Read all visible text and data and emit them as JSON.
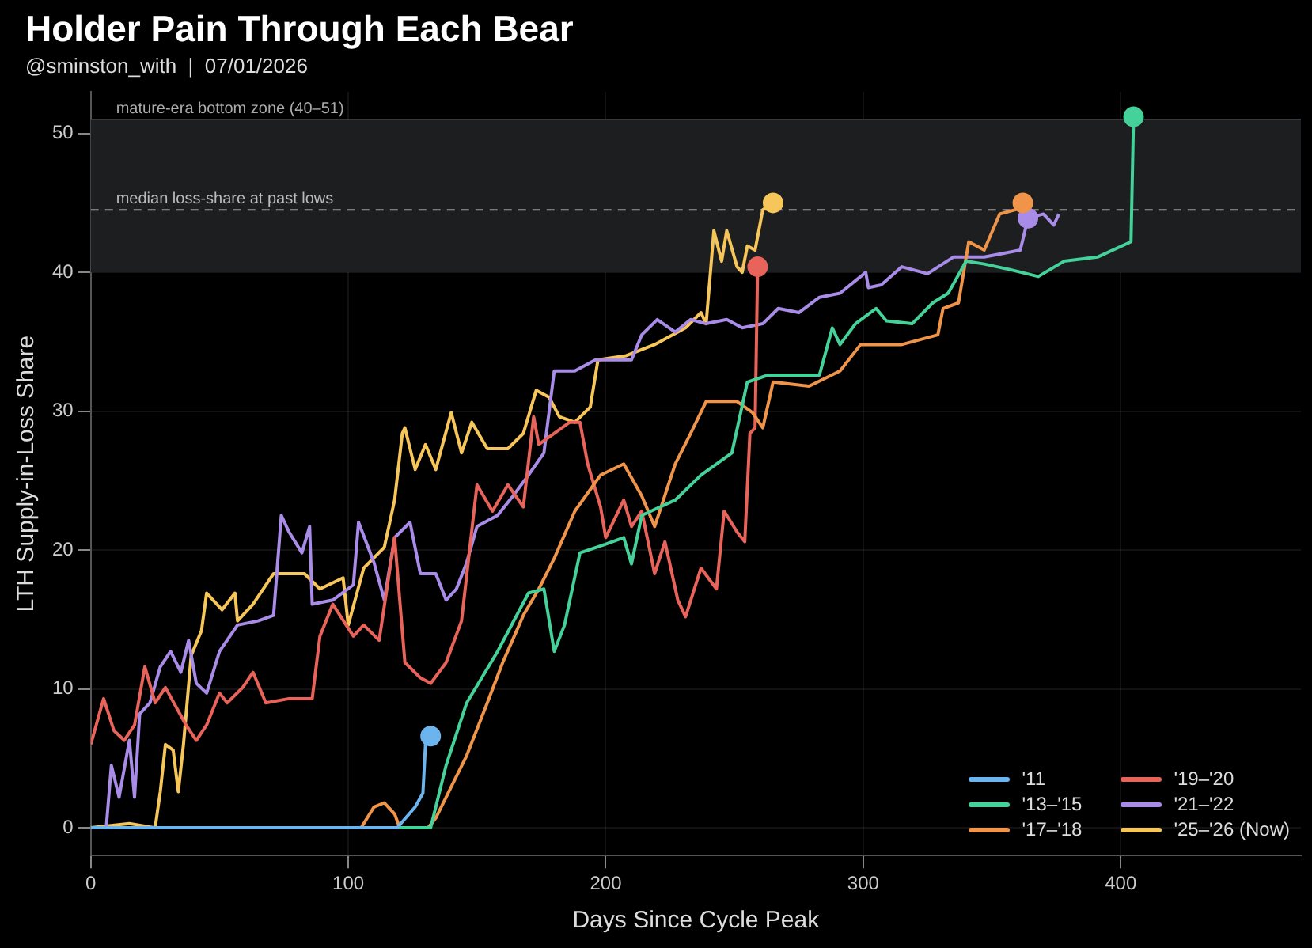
{
  "chart_data": {
    "type": "line",
    "title": "Holder Pain Through Each Bear",
    "subtitle": "@sminston_with  |  07/01/2026",
    "xlabel": "Days Since Cycle Peak",
    "ylabel": "LTH Supply-in-Loss Share",
    "xlim": [
      0,
      470
    ],
    "xticks": [
      0,
      100,
      200,
      300,
      400
    ],
    "ylim": [
      -2,
      53
    ],
    "yticks": [
      0,
      10,
      20,
      30,
      40,
      50
    ],
    "grid": true,
    "legend": "bottom right",
    "line_style": "solid",
    "bands": [
      {
        "axis": "y",
        "from": 40,
        "to": 51,
        "label": "mature-era bottom zone (40–51)",
        "color": "#1c1e20"
      }
    ],
    "ref_lines": [
      {
        "axis": "y",
        "value": 44.5,
        "label": "median loss-share at past lows",
        "color": "#9a9a9a",
        "line_style": "dashed"
      }
    ],
    "series": [
      {
        "name": "'11",
        "color": "#6cb4ee",
        "x": [
          0,
          119,
          126,
          129,
          130,
          132
        ],
        "values": [
          0,
          0,
          1.5,
          2.5,
          6,
          6.6
        ]
      },
      {
        "name": "'13–'15",
        "color": "#45d19a",
        "x": [
          0,
          132,
          138,
          146,
          158,
          170,
          176,
          180,
          184,
          190,
          198,
          207,
          210,
          214,
          227,
          237,
          249,
          255,
          263,
          273,
          283,
          288,
          291,
          297,
          305,
          309,
          319,
          327,
          333,
          340,
          347,
          357,
          368,
          378,
          391,
          404,
          405
        ],
        "values": [
          0,
          0,
          4.5,
          9,
          12.7,
          16.9,
          17.2,
          12.7,
          14.6,
          19.8,
          20.3,
          20.9,
          19,
          22.5,
          23.6,
          25.4,
          27,
          32.1,
          32.6,
          32.6,
          32.6,
          36,
          34.8,
          36.3,
          37.4,
          36.5,
          36.3,
          37.8,
          38.5,
          40.8,
          40.6,
          40.2,
          39.7,
          40.8,
          41.1,
          42.2,
          51.2
        ]
      },
      {
        "name": "'17–'18",
        "color": "#f0944a",
        "x": [
          0,
          105,
          110,
          114,
          118,
          120,
          131,
          134,
          146,
          154,
          160,
          168,
          174,
          180,
          188,
          198,
          207,
          214,
          219,
          227,
          233,
          239,
          251,
          257,
          261,
          265,
          279,
          291,
          299,
          315,
          329,
          331,
          337,
          341,
          347,
          353,
          359,
          362
        ],
        "values": [
          0,
          0,
          1.5,
          1.8,
          1,
          0,
          0,
          0.7,
          5.2,
          9,
          11.9,
          15.3,
          17.2,
          19.4,
          22.8,
          25.4,
          26.2,
          23.9,
          21.7,
          26.2,
          28.4,
          30.7,
          30.7,
          29.9,
          28.8,
          32.1,
          31.8,
          32.9,
          34.8,
          34.8,
          35.5,
          37.4,
          37.8,
          42.2,
          41.6,
          44.2,
          44.5,
          45
        ]
      },
      {
        "name": "'19–'20",
        "color": "#e8635a",
        "x": [
          0,
          5,
          9,
          13,
          17,
          21,
          25,
          29,
          37,
          41,
          45,
          50,
          53,
          59,
          63,
          68,
          77,
          86,
          89,
          94,
          102,
          106,
          112,
          118,
          122,
          128,
          132,
          138,
          144,
          150,
          156,
          162,
          168,
          172,
          174,
          186,
          190,
          193,
          198,
          200,
          207,
          210,
          214,
          219,
          223,
          228,
          231,
          237,
          243,
          246,
          251,
          254,
          256,
          258,
          259
        ],
        "values": [
          6,
          9.3,
          7,
          6.3,
          7.4,
          11.6,
          9,
          10.1,
          7.4,
          6.3,
          7.4,
          9.7,
          9,
          10.1,
          11.2,
          9,
          9.3,
          9.3,
          13.8,
          16.1,
          13.8,
          14.6,
          13.5,
          20.9,
          11.9,
          10.8,
          10.4,
          11.9,
          14.9,
          24.7,
          22.8,
          24.7,
          23.1,
          29.6,
          27.6,
          29.2,
          29.2,
          26.2,
          23.1,
          20.9,
          23.6,
          21.7,
          22.8,
          18.3,
          20.6,
          16.4,
          15.2,
          18.7,
          17.2,
          22.8,
          21.3,
          20.6,
          28.4,
          28.8,
          40.4
        ]
      },
      {
        "name": "'21–'22",
        "color": "#a98be8",
        "x": [
          0,
          6,
          8,
          11,
          15,
          17,
          19,
          23,
          27,
          31,
          35,
          38,
          41,
          45,
          50,
          57,
          65,
          71,
          74,
          77,
          82,
          85,
          86,
          94,
          102,
          104,
          110,
          114,
          118,
          124,
          128,
          134,
          138,
          142,
          146,
          150,
          158,
          164,
          170,
          176,
          180,
          188,
          196,
          210,
          214,
          220,
          227,
          233,
          239,
          247,
          253,
          261,
          267,
          275,
          283,
          291,
          301,
          302,
          307,
          315,
          325,
          335,
          347,
          361,
          364,
          370,
          374,
          376
        ],
        "values": [
          0,
          0,
          4.5,
          2.2,
          6.3,
          2.2,
          8.2,
          9,
          11.6,
          12.7,
          11.2,
          13.5,
          10.4,
          9.7,
          12.7,
          14.6,
          14.9,
          15.3,
          22.5,
          21.3,
          19.8,
          21.7,
          16.1,
          16.4,
          17.5,
          22,
          19.1,
          16.4,
          20.9,
          22,
          18.3,
          18.3,
          16.4,
          17.2,
          19.1,
          21.7,
          22.5,
          23.9,
          25.4,
          27,
          32.9,
          32.9,
          33.7,
          33.7,
          35.5,
          36.6,
          35.7,
          36.6,
          36.3,
          36.6,
          36,
          36.3,
          37.4,
          37.1,
          38.2,
          38.5,
          40,
          38.9,
          39.1,
          40.4,
          39.9,
          41.1,
          41.1,
          41.6,
          43.9,
          44.2,
          43.4,
          44.2
        ]
      },
      {
        "name": "'25–'26 (Now)",
        "color": "#f7c65a",
        "x": [
          0,
          15,
          25,
          27,
          29,
          32,
          34,
          36,
          39,
          43,
          45,
          51,
          56,
          57,
          63,
          71,
          83,
          89,
          98,
          100,
          106,
          114,
          118,
          121,
          122,
          126,
          130,
          134,
          140,
          144,
          148,
          154,
          162,
          168,
          173,
          178,
          182,
          188,
          194,
          197,
          208,
          219,
          231,
          237,
          239,
          242,
          245,
          247,
          251,
          253,
          255,
          258,
          261,
          265
        ],
        "values": [
          0,
          0.3,
          0,
          2.6,
          6,
          5.6,
          2.6,
          6,
          12.4,
          14.2,
          16.9,
          15.7,
          16.9,
          14.9,
          16.1,
          18.3,
          18.3,
          17.2,
          18,
          14.6,
          18.7,
          20.2,
          23.6,
          28.4,
          28.8,
          25.8,
          27.6,
          25.8,
          29.9,
          27,
          29.2,
          27.3,
          27.3,
          28.4,
          31.5,
          31,
          29.6,
          29.2,
          30.3,
          33.7,
          34,
          34.8,
          36,
          37.1,
          36.3,
          43,
          40.8,
          43,
          40.4,
          40,
          41.9,
          41.6,
          44.5,
          45
        ]
      },
      {
        "type": "scatter",
        "marker": "circle",
        "color": "#6cb4ee",
        "x": [
          132
        ],
        "values": [
          6.6
        ]
      },
      {
        "type": "scatter",
        "marker": "circle",
        "color": "#45d19a",
        "x": [
          405
        ],
        "values": [
          51.2
        ]
      },
      {
        "type": "scatter",
        "marker": "circle",
        "color": "#f0944a",
        "x": [
          362
        ],
        "values": [
          45
        ]
      },
      {
        "type": "scatter",
        "marker": "circle",
        "color": "#e8635a",
        "x": [
          259
        ],
        "values": [
          40.4
        ]
      },
      {
        "type": "scatter",
        "marker": "circle",
        "color": "#a98be8",
        "x": [
          364
        ],
        "values": [
          43.9
        ]
      },
      {
        "type": "scatter",
        "marker": "circle",
        "color": "#f7c65a",
        "x": [
          265
        ],
        "values": [
          45
        ]
      }
    ]
  }
}
